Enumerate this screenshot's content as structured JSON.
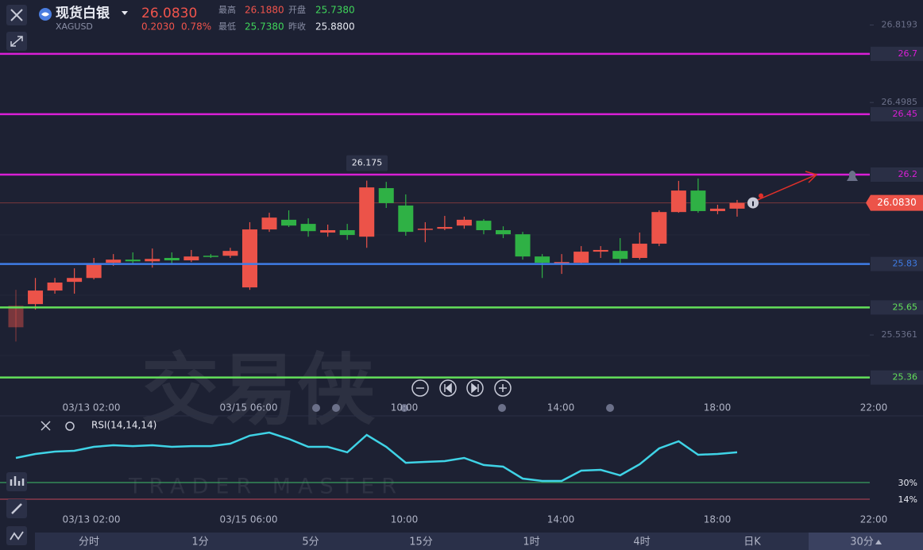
{
  "header": {
    "name": "现货白银",
    "symbol": "XAGUSD",
    "price": "26.0830",
    "change": "0.2030",
    "change_pct": "0.78%",
    "stats": [
      {
        "label": "最高",
        "value": "26.1880"
      },
      {
        "label": "开盘",
        "value": "25.7380"
      },
      {
        "label": "最低",
        "value": "25.7380"
      },
      {
        "label": "昨收",
        "value": "25.8800"
      }
    ]
  },
  "chart_data": [
    {
      "type": "candlestick",
      "up_color": "#ec5349",
      "down_color": "#2fb145",
      "ylim": [
        25.28,
        26.89
      ],
      "yticks": [
        26.8193,
        26.4985,
        25.5361
      ],
      "levels": [
        {
          "value": 26.7,
          "color": "#d91fd6"
        },
        {
          "value": 26.45,
          "color": "#d91fd6"
        },
        {
          "value": 26.2,
          "color": "#d91fd6"
        },
        {
          "value": 25.83,
          "color": "#3f7ce6"
        },
        {
          "value": 25.65,
          "color": "#63e05a"
        },
        {
          "value": 25.36,
          "color": "#63e05a"
        }
      ],
      "last_price": {
        "value": 26.083,
        "label": "26.0830"
      },
      "open": [
        25.568,
        25.664,
        25.72,
        25.756,
        25.772,
        25.835,
        25.848,
        25.841,
        25.855,
        25.845,
        25.864,
        25.864,
        25.733,
        25.973,
        26.013,
        25.996,
        25.96,
        25.97,
        25.943,
        26.144,
        26.072,
        25.973,
        25.976,
        25.989,
        26.009,
        25.97,
        25.953,
        25.861,
        25.835,
        25.835,
        25.881,
        25.884,
        25.855,
        25.914,
        26.045,
        26.134,
        26.049,
        26.059
      ],
      "high": [
        25.723,
        25.772,
        25.772,
        25.812,
        25.855,
        25.871,
        25.878,
        25.894,
        25.878,
        25.888,
        25.871,
        25.897,
        26.003,
        26.042,
        26.052,
        26.019,
        25.993,
        25.996,
        26.175,
        26.17,
        26.118,
        26.003,
        26.029,
        26.026,
        26.016,
        25.986,
        25.963,
        25.871,
        25.871,
        25.904,
        25.904,
        25.937,
        25.96,
        26.052,
        26.174,
        26.184,
        26.075,
        26.095
      ],
      "low": [
        25.509,
        25.641,
        25.707,
        25.707,
        25.766,
        25.822,
        25.828,
        25.815,
        25.828,
        25.838,
        25.855,
        25.855,
        25.723,
        25.963,
        25.983,
        25.943,
        25.943,
        25.93,
        25.897,
        26.062,
        25.947,
        25.92,
        25.97,
        25.976,
        25.953,
        25.937,
        25.848,
        25.772,
        25.789,
        25.828,
        25.855,
        25.832,
        25.848,
        25.904,
        26.042,
        26.042,
        26.036,
        26.026
      ],
      "close": [
        25.657,
        25.72,
        25.753,
        25.772,
        25.828,
        25.848,
        25.841,
        25.851,
        25.845,
        25.861,
        25.861,
        25.884,
        25.973,
        26.022,
        25.989,
        25.966,
        25.97,
        25.95,
        26.147,
        26.082,
        25.963,
        25.976,
        25.983,
        26.013,
        25.97,
        25.953,
        25.861,
        25.835,
        25.838,
        25.881,
        25.888,
        25.851,
        25.914,
        26.045,
        26.134,
        26.049,
        26.059,
        26.083
      ]
    },
    {
      "type": "line",
      "name": "RSI(14,14,14)",
      "color": "#3fd3e6",
      "ylim": [
        5,
        95
      ],
      "levels": [
        {
          "value": 30,
          "label": "30%",
          "color": "#3fbf6a"
        },
        {
          "value": 14,
          "label": "14%",
          "color": "#c0475a"
        }
      ],
      "values": [
        53.6,
        57.4,
        59.7,
        60.5,
        64.3,
        65.8,
        65.0,
        65.8,
        64.3,
        65.0,
        65.0,
        67.3,
        75.0,
        78.0,
        71.9,
        64.3,
        64.3,
        59.0,
        75.7,
        64.3,
        49.0,
        49.8,
        50.6,
        53.6,
        46.8,
        45.2,
        33.8,
        31.5,
        31.5,
        41.4,
        42.2,
        36.9,
        47.5,
        62.8,
        69.6,
        56.7,
        57.4,
        59.0
      ]
    }
  ],
  "time_labels": [
    "03/13 02:00",
    "03/15 06:00",
    "10:00",
    "14:00",
    "18:00",
    "22:00"
  ],
  "watermark": {
    "main": "交易侠",
    "sub": "TRADER MASTER"
  },
  "tabs": [
    "分时",
    "1分",
    "5分",
    "15分",
    "1时",
    "4时",
    "日K",
    "30分"
  ]
}
